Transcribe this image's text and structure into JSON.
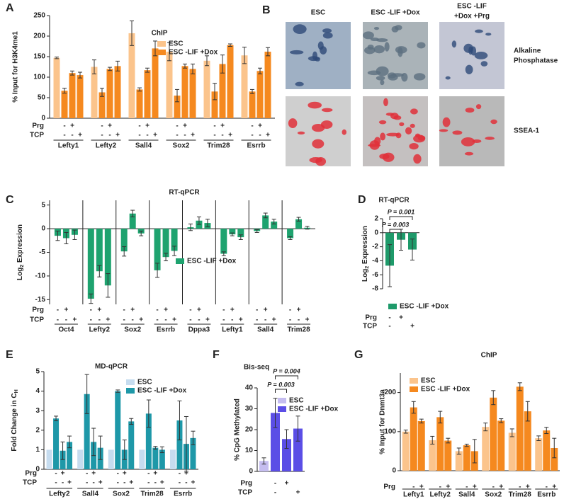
{
  "chart_data": [
    {
      "type": "bar",
      "panel": "A",
      "title": "ChIP",
      "ylabel": "% Input for H3K4me1",
      "ylim": [
        0,
        250
      ],
      "yticks": [
        0,
        50,
        100,
        150,
        200,
        250
      ],
      "categories": [
        "Lefty1",
        "Lefty2",
        "Sall4",
        "Sox2",
        "Trim28",
        "Esrrb"
      ],
      "series": [
        {
          "name": "ESC",
          "color": "#fbc48c",
          "values": [
            147,
            125,
            207,
            162,
            140,
            153
          ],
          "errors": [
            2,
            17,
            30,
            22,
            12,
            20
          ]
        },
        {
          "name": "ESC -LIF +Dox",
          "color": "#f5891f",
          "values": [
            [
              67,
              110,
              105
            ],
            [
              63,
              120,
              127
            ],
            [
              70,
              117,
              170
            ],
            [
              55,
              127,
              120
            ],
            [
              65,
              132,
              178
            ],
            [
              65,
              115,
              162
            ]
          ],
          "errors": [
            [
              6,
              5,
              7
            ],
            [
              10,
              4,
              12
            ],
            [
              4,
              5,
              18
            ],
            [
              15,
              5,
              12
            ],
            [
              20,
              22,
              3
            ],
            [
              5,
              7,
              10
            ]
          ]
        }
      ],
      "treatments": [
        {
          "label": "Prg",
          "marks": [
            null,
            "-",
            "+",
            null
          ]
        },
        {
          "label": "TCP",
          "marks": [
            null,
            "-",
            "-",
            "+"
          ]
        }
      ]
    },
    {
      "type": "bar",
      "panel": "C",
      "title": "RT-qPCR",
      "ylabel": [
        {
          "text": "Log"
        },
        {
          "text": "2",
          "sub": true
        },
        {
          "text": " Expression"
        }
      ],
      "ylim": [
        -16,
        6
      ],
      "yticks": [
        5,
        0,
        -5,
        -10,
        -15
      ],
      "categories": [
        "Oct4",
        "Lefty2",
        "Sox2",
        "Esrrb",
        "Dppa3",
        "Lefty1",
        "Sall4",
        "Trim28"
      ],
      "series": [
        {
          "name": "ESC -LIF +Dox",
          "color": "#1ea36f",
          "values": [
            [
              -1.5,
              -2,
              -1.3
            ],
            [
              -14.8,
              -9,
              -12
            ],
            [
              -4.8,
              3.2,
              -1
            ],
            [
              -8.8,
              -6,
              -4.7
            ],
            [
              0.3,
              1.7,
              1.2
            ],
            [
              -5.3,
              -1.2,
              -1.8
            ],
            [
              -0.5,
              2.8,
              1.5
            ],
            [
              -2,
              2,
              0.2
            ]
          ],
          "errors": [
            [
              1,
              1.2,
              1
            ],
            [
              1,
              1.2,
              2.5
            ],
            [
              1,
              0.7,
              0.5
            ],
            [
              1.5,
              0.8,
              1
            ],
            [
              0.7,
              0.8,
              0.8
            ],
            [
              0.4,
              0.3,
              0.5
            ],
            [
              0.3,
              0.5,
              0.5
            ],
            [
              0.3,
              0.4,
              0.3
            ]
          ]
        }
      ],
      "treatments": [
        {
          "label": "Prg",
          "marks": [
            "-",
            "+",
            null
          ]
        },
        {
          "label": "TCP",
          "marks": [
            "-",
            "-",
            "+"
          ]
        }
      ]
    },
    {
      "type": "bar",
      "panel": "D",
      "title": "RT-qPCR",
      "ylabel": [
        {
          "text": "Log"
        },
        {
          "text": "2",
          "sub": true
        },
        {
          "text": " Expression"
        }
      ],
      "ylim": [
        -8,
        2
      ],
      "yticks": [
        2,
        0,
        -2,
        -4,
        -6,
        -8
      ],
      "series": [
        {
          "name": "ESC -LIF +Dox",
          "color": "#1e9a6a",
          "values": [
            -4.7,
            -1,
            -2.4
          ],
          "errors": [
            3,
            1.5,
            1.5
          ]
        }
      ],
      "annotations": [
        "P = 0.003",
        "P = 0.001"
      ],
      "treatments": [
        {
          "label": "Prg",
          "marks": [
            "-",
            "+",
            null
          ]
        },
        {
          "label": "TCP",
          "marks": [
            "-",
            null,
            "+"
          ]
        }
      ]
    },
    {
      "type": "bar",
      "panel": "E",
      "title": "MD-qPCR",
      "ylabel": [
        {
          "text": "Fold Change in C"
        },
        {
          "text": "H",
          "sub": true
        }
      ],
      "ylim": [
        0,
        5
      ],
      "yticks": [
        0,
        1,
        2,
        3,
        4,
        5
      ],
      "categories": [
        "Lefty2",
        "Sall4",
        "Sox2",
        "Trim28",
        "Esrrb"
      ],
      "series": [
        {
          "name": "ESC",
          "color": "#c6dcef",
          "values": [
            1,
            1,
            1,
            1,
            1
          ]
        },
        {
          "name": "ESC -LIF +Dox",
          "color": "#1e98a8",
          "values": [
            [
              2.6,
              0.95,
              1.4
            ],
            [
              3.85,
              1.4,
              1.1
            ],
            [
              4.0,
              1.0,
              2.45
            ],
            [
              2.85,
              1.1,
              1.0
            ],
            [
              2.5,
              1.3,
              1.6
            ]
          ],
          "errors": [
            [
              0.12,
              0.45,
              0.3
            ],
            [
              1.0,
              0.7,
              0.6
            ],
            [
              0.06,
              0.5,
              0.15
            ],
            [
              0.7,
              0.07,
              0.15
            ],
            [
              1.0,
              1.4,
              0.35
            ]
          ]
        }
      ],
      "treatments": [
        {
          "label": "Prg",
          "marks": [
            null,
            "-",
            "+",
            null
          ]
        },
        {
          "label": "TCP",
          "marks": [
            null,
            "-",
            "-",
            "+"
          ]
        }
      ]
    },
    {
      "type": "bar",
      "panel": "F",
      "title": "Bis-seq",
      "ylabel": "% CpG Methylated",
      "ylim": [
        0,
        40
      ],
      "yticks": [
        0,
        10,
        20,
        30,
        40
      ],
      "series": [
        {
          "name": "ESC",
          "color": "#c5bdf0",
          "values": 5,
          "errors": 1.5
        },
        {
          "name": "ESC -LIF +Dox",
          "color": "#5b4ee6",
          "values": [
            28,
            15.5,
            20.5
          ],
          "errors": [
            7,
            4.5,
            6
          ]
        }
      ],
      "annotations": [
        "P = 0.004",
        "P = 0.003"
      ],
      "treatments": [
        {
          "label": "Prg",
          "marks": [
            null,
            "-",
            "+",
            null
          ]
        },
        {
          "label": "TCP",
          "marks": [
            null,
            "-",
            null,
            "+"
          ]
        }
      ]
    },
    {
      "type": "bar",
      "panel": "G",
      "title": "ChIP",
      "ylabel": "% Input for Dnmt3a",
      "ylim": [
        0,
        250
      ],
      "yticks": [
        0,
        100,
        200
      ],
      "categories": [
        "Lefty1",
        "Lefty2",
        "Sall4",
        "Sox2",
        "Trim28",
        "Esrrb"
      ],
      "series": [
        {
          "name": "ESC",
          "color": "#fbc48c",
          "values": [
            100,
            78,
            50,
            112,
            97,
            83
          ],
          "errors": [
            4,
            10,
            8,
            10,
            10,
            6
          ]
        },
        {
          "name": "ESC -LIF +Dox",
          "color": "#f5891f",
          "values": [
            [
              162,
              127
            ],
            [
              137,
              77
            ],
            [
              65,
              50
            ],
            [
              187,
              128
            ],
            [
              215,
              152
            ],
            [
              103,
              58
            ]
          ],
          "errors": [
            [
              15,
              5
            ],
            [
              15,
              6
            ],
            [
              3,
              30
            ],
            [
              18,
              5
            ],
            [
              10,
              25
            ],
            [
              8,
              25
            ]
          ]
        }
      ],
      "treatments": [
        {
          "label": "Prg",
          "marks": [
            null,
            "-",
            "+"
          ]
        }
      ]
    }
  ],
  "images": {
    "panel": "B",
    "columns": [
      [
        "ESC"
      ],
      [
        "ESC -LIF +Dox"
      ],
      [
        "ESC -LIF",
        "+Dox +Prg"
      ]
    ],
    "rows": [
      [
        "Alkaline",
        "Phosphatase"
      ],
      [
        "SSEA-1"
      ]
    ]
  }
}
